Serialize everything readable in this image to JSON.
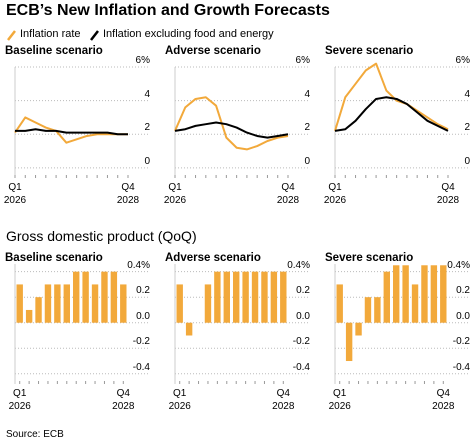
{
  "title": "ECB’s New Inflation and Growth Forecasts",
  "subtitle": "Gross domestic product (QoQ)",
  "source": "Source: ECB",
  "chart_data": [
    {
      "type": "line",
      "title": "Baseline scenario",
      "categories": [
        "Q1\n2026",
        null,
        null,
        null,
        null,
        null,
        null,
        null,
        null,
        null,
        null,
        "Q4\n2028"
      ],
      "series": [
        {
          "name": "Inflation rate",
          "color": "#f2a93b",
          "values": [
            2.1,
            3.0,
            2.7,
            2.4,
            2.2,
            1.5,
            1.7,
            1.9,
            2.0,
            2.0,
            2.0,
            2.0
          ]
        },
        {
          "name": "Inflation excluding food and energy",
          "color": "#000000",
          "values": [
            2.2,
            2.2,
            2.3,
            2.2,
            2.2,
            2.1,
            2.1,
            2.1,
            2.1,
            2.1,
            2.0,
            2.0
          ]
        }
      ],
      "ylim": [
        -0.6,
        6
      ],
      "yticks": [
        0,
        2,
        4,
        {
          "value": 6,
          "label": "6%"
        }
      ],
      "grid": true
    },
    {
      "type": "line",
      "title": "Adverse scenario",
      "categories": [
        "Q1\n2026",
        null,
        null,
        null,
        null,
        null,
        null,
        null,
        null,
        null,
        null,
        "Q4\n2028"
      ],
      "series": [
        {
          "color": "#f2a93b",
          "values": [
            2.2,
            3.6,
            4.1,
            4.2,
            3.7,
            1.8,
            1.2,
            1.1,
            1.3,
            1.6,
            1.8,
            1.9
          ]
        },
        {
          "color": "#000000",
          "values": [
            2.2,
            2.3,
            2.5,
            2.6,
            2.7,
            2.6,
            2.4,
            2.1,
            1.9,
            1.8,
            1.9,
            2.0
          ]
        }
      ],
      "ylim": [
        -0.6,
        6
      ],
      "yticks": [
        0,
        2,
        4,
        {
          "value": 6,
          "label": "6%"
        }
      ],
      "grid": true
    },
    {
      "type": "line",
      "title": "Severe scenario",
      "categories": [
        "Q1\n2026",
        null,
        null,
        null,
        null,
        null,
        null,
        null,
        null,
        null,
        null,
        "Q4\n2028"
      ],
      "series": [
        {
          "color": "#f2a93b",
          "values": [
            2.2,
            4.2,
            5.0,
            5.8,
            6.2,
            4.6,
            4.0,
            3.8,
            3.4,
            3.0,
            2.6,
            2.3
          ]
        },
        {
          "color": "#000000",
          "values": [
            2.2,
            2.3,
            2.8,
            3.5,
            4.1,
            4.2,
            4.1,
            3.8,
            3.3,
            2.8,
            2.5,
            2.2
          ]
        }
      ],
      "ylim": [
        -0.6,
        6
      ],
      "yticks": [
        0,
        2,
        4,
        {
          "value": 6,
          "label": "6%"
        }
      ],
      "grid": true
    },
    {
      "type": "bar",
      "title": "Baseline scenario",
      "categories": [
        "Q1\n2026",
        null,
        null,
        null,
        null,
        null,
        null,
        null,
        null,
        null,
        null,
        "Q4\n2028"
      ],
      "values": [
        0.3,
        0.1,
        0.2,
        0.3,
        0.3,
        0.3,
        0.4,
        0.4,
        0.3,
        0.4,
        0.4,
        0.3
      ],
      "color": "#f2a93b",
      "ylim": [
        -0.48,
        0.46
      ],
      "yticks": [
        {
          "value": 0.4,
          "label": "0.4%"
        },
        0.2,
        {
          "value": 0,
          "label": "0.0"
        },
        -0.2,
        -0.4
      ],
      "grid": true
    },
    {
      "type": "bar",
      "title": "Adverse scenario",
      "categories": [
        "Q1\n2026",
        null,
        null,
        null,
        null,
        null,
        null,
        null,
        null,
        null,
        null,
        "Q4\n2028"
      ],
      "values": [
        0.3,
        -0.1,
        0.0,
        0.3,
        0.4,
        0.4,
        0.4,
        0.4,
        0.4,
        0.4,
        0.4,
        0.4
      ],
      "color": "#f2a93b",
      "ylim": [
        -0.48,
        0.46
      ],
      "yticks": [
        {
          "value": 0.4,
          "label": "0.4%"
        },
        0.2,
        {
          "value": 0,
          "label": "0.0"
        },
        -0.2,
        -0.4
      ],
      "grid": true
    },
    {
      "type": "bar",
      "title": "Severe scenario",
      "categories": [
        "Q1\n2026",
        null,
        null,
        null,
        null,
        null,
        null,
        null,
        null,
        null,
        null,
        "Q4\n2028"
      ],
      "values": [
        0.3,
        -0.3,
        -0.1,
        0.2,
        0.2,
        0.4,
        0.45,
        0.45,
        0.3,
        0.45,
        0.45,
        0.45
      ],
      "color": "#f2a93b",
      "ylim": [
        -0.48,
        0.46
      ],
      "yticks": [
        {
          "value": 0.4,
          "label": "0.4%"
        },
        0.2,
        {
          "value": 0,
          "label": "0.0"
        },
        -0.2,
        -0.4
      ],
      "grid": true
    }
  ]
}
